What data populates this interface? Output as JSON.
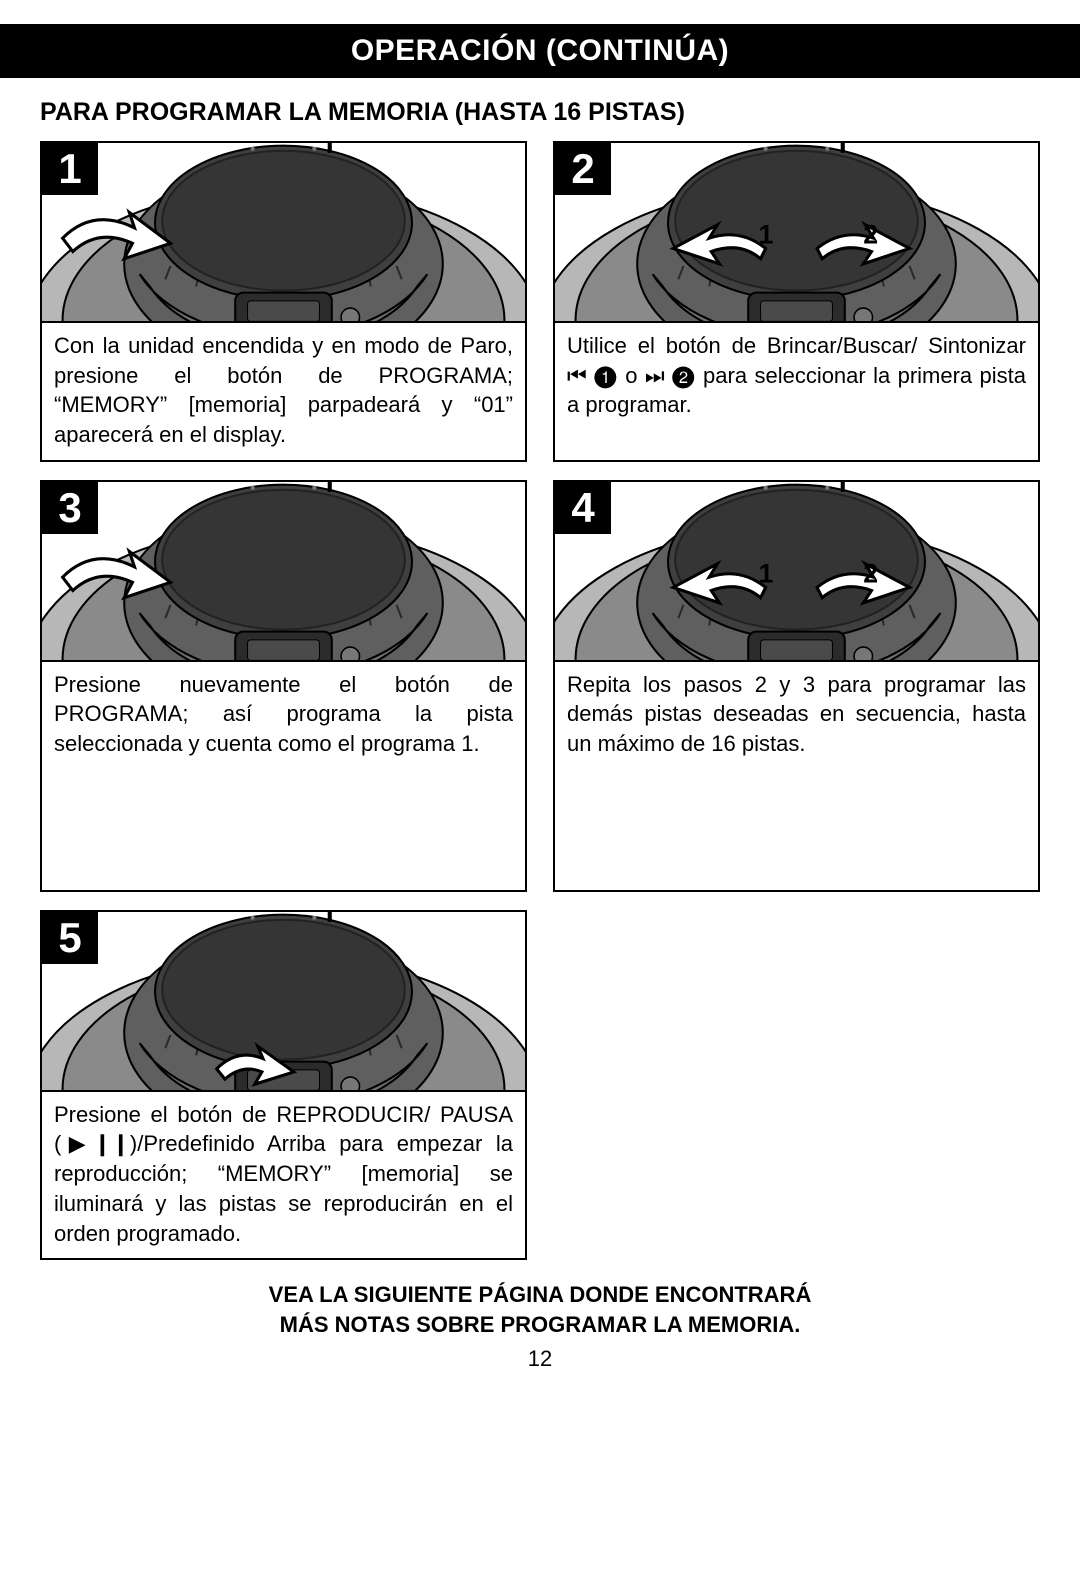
{
  "header": "OPERACIÓN (CONTINÚA)",
  "subheading": "PARA PROGRAMAR LA MEMORIA (HASTA 16 PISTAS)",
  "steps": [
    {
      "num": "1",
      "text": "Con la unidad encendida y en modo de Paro, presione el botón de PROGRAMA; “MEMORY” [memoria] parpadeará y “01” aparecerá en el display.",
      "variant": "arrow-left"
    },
    {
      "num": "2",
      "text": "Utilice el botón de Brincar/Buscar/ Sintonizar ⏮ ❶ o ⏭ ❷ para seleccionar la primera pista a programar.",
      "variant": "arrows-12"
    },
    {
      "num": "3",
      "text": "Presione nuevamente el botón de PROGRAMA; así programa la pista seleccionada y cuenta como el programa 1.",
      "variant": "arrow-left"
    },
    {
      "num": "4",
      "text": "Repita los pasos 2 y 3 para programar las demás pistas deseadas en secuencia, hasta un máximo de 16 pistas.",
      "variant": "arrows-12"
    },
    {
      "num": "5",
      "text": "Presione el botón de REPRODUCIR/ PAUSA (▶❙❙)/Predefinido Arriba para empezar la reproducción; “MEMORY” [memoria] se iluminará y las pistas se reproducirán en el orden programado.",
      "variant": "arrow-center"
    }
  ],
  "footer_line1": "VEA LA SIGUIENTE PÁGINA DONDE ENCONTRARÁ",
  "footer_line2": "MÁS NOTAS SOBRE PROGRAMAR LA MEMORIA.",
  "page_number": "12",
  "colors": {
    "boombox_outer": "#b7b7b7",
    "boombox_mid": "#8a8a8a",
    "boombox_dark": "#5f5f5f",
    "boombox_lid": "#3f3f3f",
    "display": "#4a4a4a",
    "arrow_fill": "#ffffff",
    "arrow_stroke": "#000000"
  }
}
